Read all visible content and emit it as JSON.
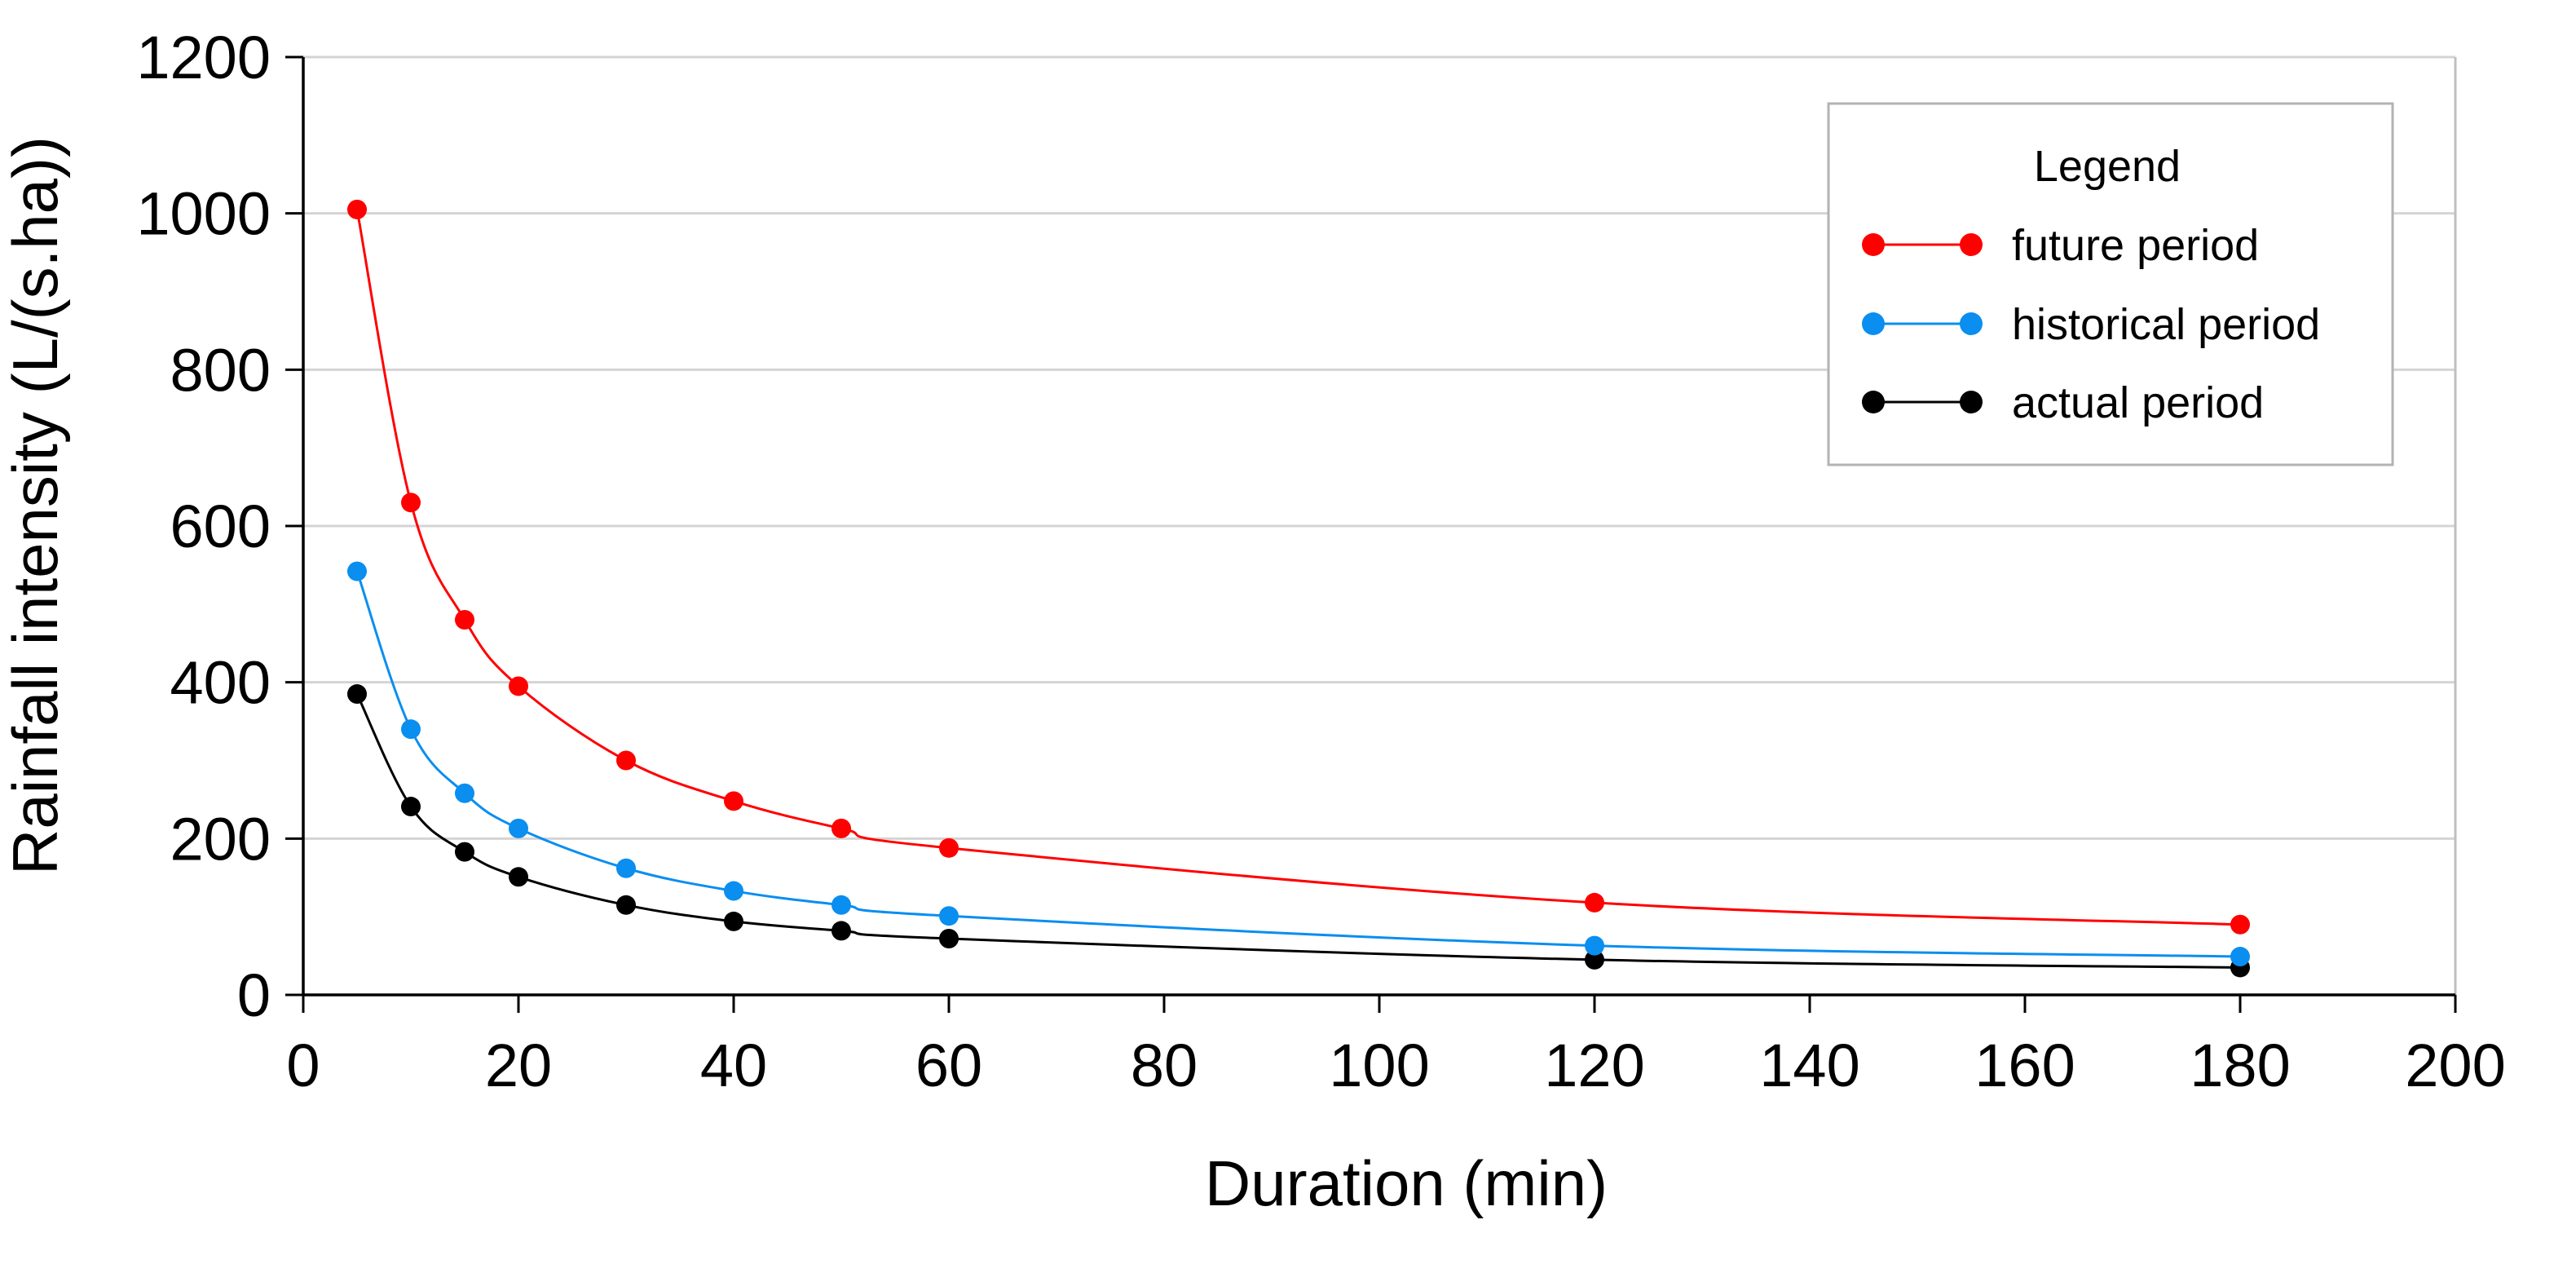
{
  "chart_data": {
    "type": "line",
    "title": "",
    "xlabel": "Duration (min)",
    "ylabel": "Rainfall intensity (L/(s.ha))",
    "xlim": [
      0,
      200
    ],
    "ylim": [
      0,
      1200
    ],
    "xticks": [
      0,
      20,
      40,
      60,
      80,
      100,
      120,
      140,
      160,
      180,
      200
    ],
    "yticks": [
      0,
      200,
      400,
      600,
      800,
      1000,
      1200
    ],
    "grid": "horizontal",
    "legend_position": "top-right",
    "legend_title": "Legend",
    "x": [
      5,
      10,
      15,
      20,
      30,
      40,
      50,
      60,
      120,
      180
    ],
    "series": [
      {
        "name": "future period",
        "color": "#ff0000",
        "values": [
          1005,
          630,
          480,
          395,
          300,
          248,
          213,
          188,
          118,
          90
        ]
      },
      {
        "name": "historical period",
        "color": "#0a8ef0",
        "values": [
          542,
          340,
          258,
          213,
          162,
          133,
          115,
          101,
          63,
          49
        ]
      },
      {
        "name": "actual period",
        "color": "#000000",
        "values": [
          385,
          241,
          183,
          151,
          115,
          94,
          82,
          72,
          45,
          35
        ]
      }
    ]
  }
}
